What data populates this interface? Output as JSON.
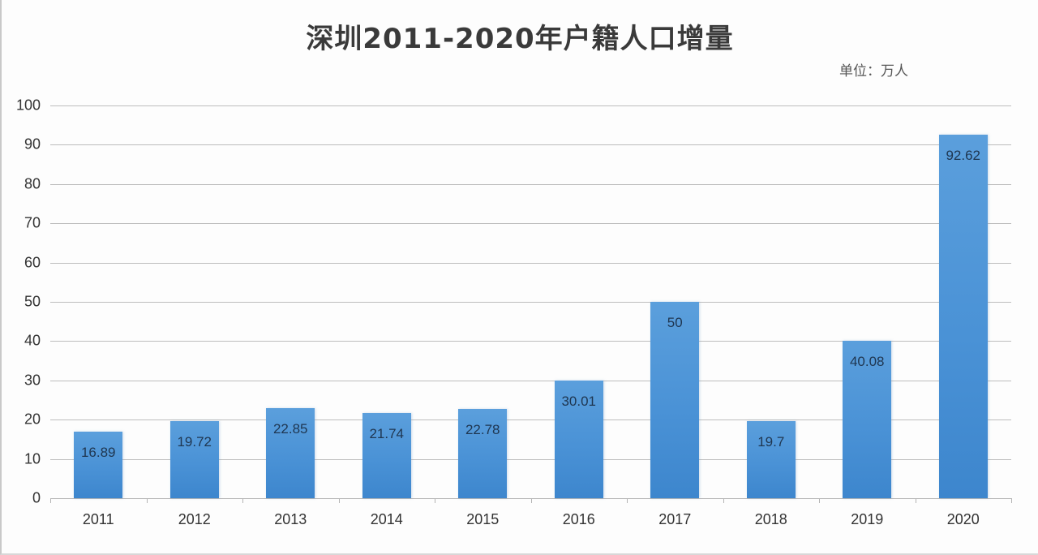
{
  "chart_data": {
    "type": "bar",
    "title": "深圳2011-2020年户籍人口增量",
    "unit_label": "单位：万人",
    "xlabel": "",
    "ylabel": "",
    "ylim": [
      0,
      100
    ],
    "yticks": [
      "0",
      "10",
      "20",
      "30",
      "40",
      "50",
      "60",
      "70",
      "80",
      "90",
      "100"
    ],
    "grid": true,
    "legend": "none",
    "categories": [
      "2011",
      "2012",
      "2013",
      "2014",
      "2015",
      "2016",
      "2017",
      "2018",
      "2019",
      "2020"
    ],
    "values": [
      16.89,
      19.72,
      22.85,
      21.74,
      22.78,
      30.01,
      50,
      19.7,
      40.08,
      92.62
    ],
    "value_labels": [
      "16.89",
      "19.72",
      "22.85",
      "21.74",
      "22.78",
      "30.01",
      "50",
      "19.7",
      "40.08",
      "92.62"
    ],
    "bar_color": "#4a92d6",
    "label_color": "#1f3650"
  }
}
